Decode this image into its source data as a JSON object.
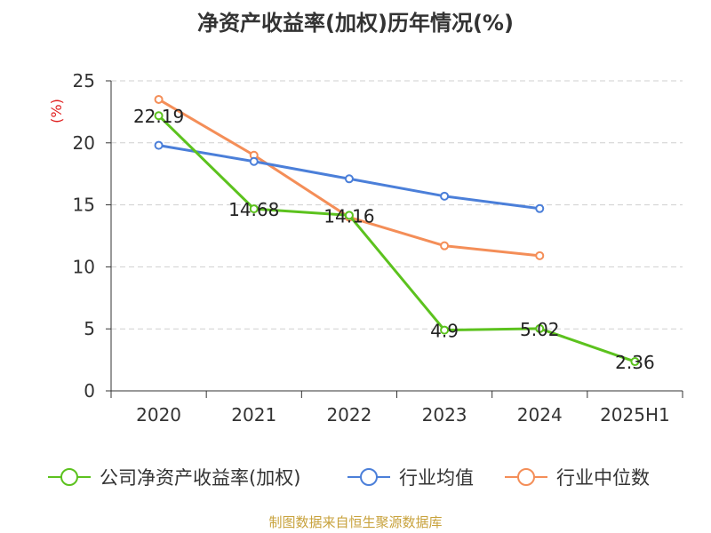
{
  "chart_data": {
    "type": "line",
    "title": "净资产收益率(加权)历年情况(%)",
    "ylabel": "(%)",
    "categories": [
      "2020",
      "2021",
      "2022",
      "2023",
      "2024",
      "2025H1"
    ],
    "ylim": [
      0,
      25
    ],
    "yticks": [
      0,
      5,
      10,
      15,
      20,
      25
    ],
    "grid": true,
    "legend_position": "bottom",
    "series": [
      {
        "name": "公司净资产收益率(加权)",
        "color": "#5cc21e",
        "values": [
          22.19,
          14.68,
          14.16,
          4.9,
          5.02,
          2.36
        ],
        "labels": [
          "22.19",
          "14.68",
          "14.16",
          "4.9",
          "5.02",
          "2.36"
        ]
      },
      {
        "name": "行业均值",
        "color": "#4b7fd9",
        "values": [
          19.8,
          18.5,
          17.1,
          15.7,
          14.7,
          null
        ]
      },
      {
        "name": "行业中位数",
        "color": "#f48e58",
        "values": [
          23.5,
          19.0,
          14.0,
          11.7,
          10.9,
          null
        ]
      }
    ]
  },
  "source": "制图数据来自恒生聚源数据库"
}
